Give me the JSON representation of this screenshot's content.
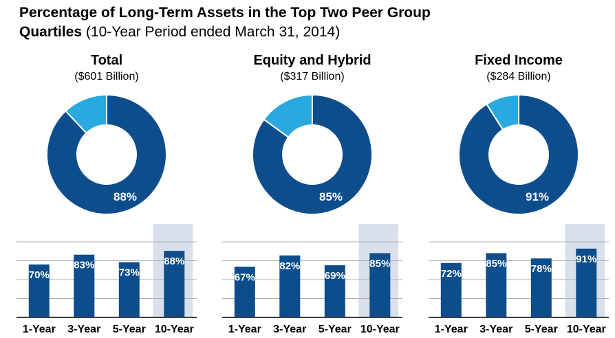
{
  "title": {
    "line1_bold": "Percentage of Long-Term Assets in the Top Two Peer Group",
    "line2_bold": "Quartiles",
    "line2_normal": "(10-Year Period ended March 31, 2014)"
  },
  "colors": {
    "dark_blue": "#0E4D8C",
    "light_blue": "#29A9E0",
    "highlight_band": "#D9E0EB",
    "gridline": "#AFAFAF",
    "axis": "#3F3F3F",
    "label_white": "#FFFFFF",
    "text_black": "#000000"
  },
  "chart_data": [
    {
      "title": "Total",
      "subtitle": "($601 Billion)",
      "donut": {
        "type": "pie",
        "label": "88%",
        "segments": [
          {
            "name": "top-two-quartiles",
            "value": 88
          },
          {
            "name": "remainder",
            "value": 12
          }
        ]
      },
      "bars": {
        "type": "bar",
        "categories": [
          "1-Year",
          "3-Year",
          "5-Year",
          "10-Year"
        ],
        "values": [
          70,
          83,
          73,
          88
        ],
        "value_labels": [
          "70%",
          "83%",
          "73%",
          "88%"
        ],
        "highlight_index": 3,
        "ylim": [
          0,
          100
        ],
        "gridlines_pct": [
          25,
          50,
          75,
          100
        ]
      }
    },
    {
      "title": "Equity and Hybrid",
      "subtitle": "($317 Billion)",
      "donut": {
        "type": "pie",
        "label": "85%",
        "segments": [
          {
            "name": "top-two-quartiles",
            "value": 85
          },
          {
            "name": "remainder",
            "value": 15
          }
        ]
      },
      "bars": {
        "type": "bar",
        "categories": [
          "1-Year",
          "3-Year",
          "5-Year",
          "10-Year"
        ],
        "values": [
          67,
          82,
          69,
          85
        ],
        "value_labels": [
          "67%",
          "82%",
          "69%",
          "85%"
        ],
        "highlight_index": 3,
        "ylim": [
          0,
          100
        ],
        "gridlines_pct": [
          25,
          50,
          75,
          100
        ]
      }
    },
    {
      "title": "Fixed Income",
      "subtitle": "($284 Billion)",
      "donut": {
        "type": "pie",
        "label": "91%",
        "segments": [
          {
            "name": "top-two-quartiles",
            "value": 91
          },
          {
            "name": "remainder",
            "value": 9
          }
        ]
      },
      "bars": {
        "type": "bar",
        "categories": [
          "1-Year",
          "3-Year",
          "5-Year",
          "10-Year"
        ],
        "values": [
          72,
          85,
          78,
          91
        ],
        "value_labels": [
          "72%",
          "85%",
          "78%",
          "91%"
        ],
        "highlight_index": 3,
        "ylim": [
          0,
          100
        ],
        "gridlines_pct": [
          25,
          50,
          75,
          100
        ]
      }
    }
  ]
}
